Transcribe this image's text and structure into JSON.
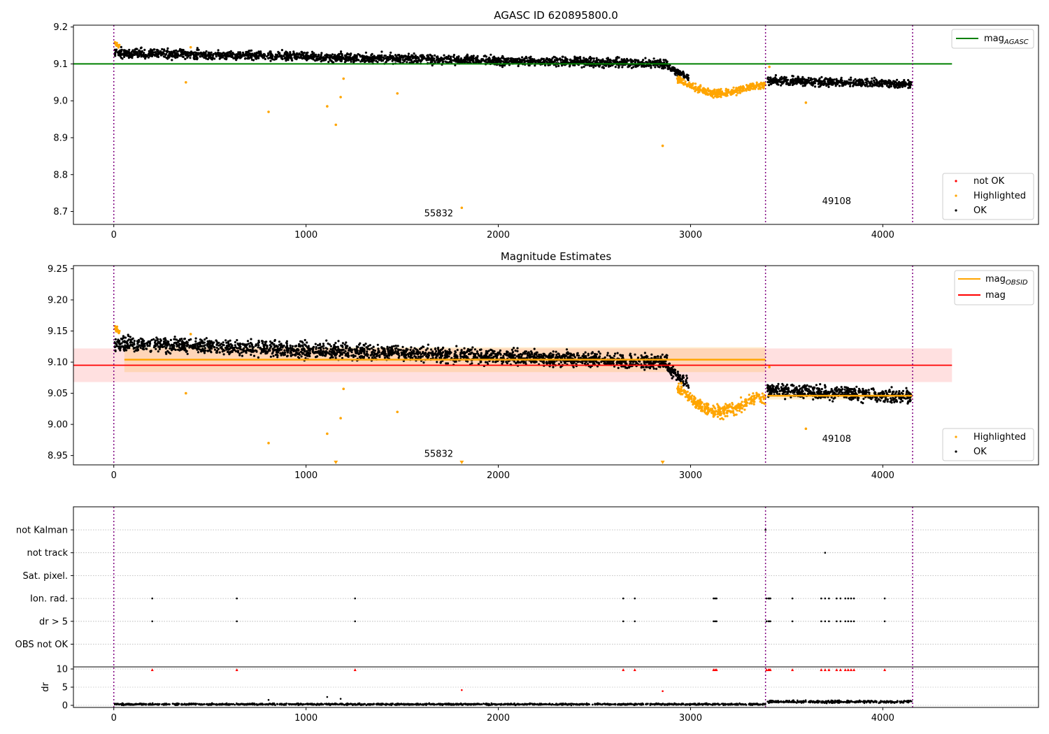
{
  "chart_data": [
    {
      "type": "scatter",
      "title": "AGASC ID 620895800.0",
      "xlim": [
        -210,
        4810
      ],
      "ylim": [
        8.665,
        9.205
      ],
      "xticks": [
        0,
        1000,
        2000,
        3000,
        4000
      ],
      "xtick_labels": [
        "0",
        "1000",
        "2000",
        "3000",
        "4000"
      ],
      "yticks": [
        8.7,
        8.8,
        8.9,
        9.0,
        9.1,
        9.2
      ],
      "ytick_labels": [
        "8.7",
        "8.8",
        "8.9",
        "9.0",
        "9.1",
        "9.2"
      ],
      "obs_boundaries": [
        0,
        3390,
        4155
      ],
      "mag_agasc": {
        "value": 9.1,
        "x_range": [
          -210,
          4360
        ],
        "color": "#008000"
      },
      "annotations": [
        {
          "text": "55832",
          "x": 1690,
          "y": 8.687
        },
        {
          "text": "49108",
          "x": 3760,
          "y": 8.72
        }
      ],
      "legend_lines": [
        {
          "label_main": "mag",
          "label_sub": "AGASC",
          "color": "#008000"
        }
      ],
      "legend_points": [
        {
          "label": "not OK",
          "color": "#ff0000"
        },
        {
          "label": "Highlighted",
          "color": "#ffa500"
        },
        {
          "label": "OK",
          "color": "#000000"
        }
      ],
      "series": [
        {
          "name": "OK",
          "color": "#000000",
          "segments": [
            {
              "x": [
                5,
                2880
              ],
              "start": 9.13,
              "end": 9.1,
              "dip": 0,
              "spread": 0.011
            },
            {
              "x": [
                2880,
                2990
              ],
              "start": 9.09,
              "end": 9.065,
              "dip": 0,
              "spread": 0.008
            },
            {
              "x": [
                3400,
                4150
              ],
              "start": 9.055,
              "end": 9.045,
              "dip": 0,
              "spread": 0.01
            }
          ]
        },
        {
          "name": "Highlighted",
          "color": "#ffa500",
          "segments": [
            {
              "x": [
                5,
                30
              ],
              "start": 9.155,
              "end": 9.148,
              "dip": 0,
              "spread": 0.004
            },
            {
              "x": [
                2930,
                3390
              ],
              "start": 9.06,
              "end": 9.04,
              "dip": 0.03,
              "spread": 0.009
            }
          ],
          "outliers": [
            {
              "x": 375,
              "y": 9.05
            },
            {
              "x": 400,
              "y": 9.145
            },
            {
              "x": 805,
              "y": 8.97
            },
            {
              "x": 1110,
              "y": 8.985
            },
            {
              "x": 1155,
              "y": 8.935
            },
            {
              "x": 1180,
              "y": 9.01
            },
            {
              "x": 1195,
              "y": 9.06
            },
            {
              "x": 1475,
              "y": 9.02
            },
            {
              "x": 1810,
              "y": 8.71
            },
            {
              "x": 2855,
              "y": 8.878
            },
            {
              "x": 3410,
              "y": 9.092
            },
            {
              "x": 3600,
              "y": 8.995
            }
          ]
        }
      ]
    },
    {
      "type": "scatter",
      "title": "Magnitude Estimates",
      "xlim": [
        -210,
        4810
      ],
      "ylim": [
        8.935,
        9.255
      ],
      "xticks": [
        0,
        1000,
        2000,
        3000,
        4000
      ],
      "xtick_labels": [
        "0",
        "1000",
        "2000",
        "3000",
        "4000"
      ],
      "yticks": [
        8.95,
        9.0,
        9.05,
        9.1,
        9.15,
        9.2,
        9.25
      ],
      "ytick_labels": [
        "8.95",
        "9.00",
        "9.05",
        "9.10",
        "9.15",
        "9.20",
        "9.25"
      ],
      "obs_boundaries": [
        0,
        3390,
        4155
      ],
      "mag": {
        "value": 9.095,
        "band": [
          9.068,
          9.122
        ],
        "x_range": [
          -210,
          4360
        ],
        "color": "#ff0000"
      },
      "mag_obsid": [
        {
          "value": 9.104,
          "band": [
            9.084,
            9.124
          ],
          "x_range": [
            55,
            3390
          ]
        },
        {
          "value": 9.046,
          "band": [
            9.04,
            9.052
          ],
          "x_range": [
            3400,
            4155
          ]
        }
      ],
      "mag_obsid_color": "#ffa500",
      "annotations": [
        {
          "text": "55832",
          "x": 1690,
          "y": 8.948
        },
        {
          "text": "49108",
          "x": 3760,
          "y": 8.972
        }
      ],
      "legend_lines": [
        {
          "label_main": "mag",
          "label_sub": "OBSID",
          "color": "#ffa500"
        },
        {
          "label_main": "mag",
          "label_sub": "",
          "color": "#ff0000"
        }
      ],
      "legend_points": [
        {
          "label": "Highlighted",
          "color": "#ffa500"
        },
        {
          "label": "OK",
          "color": "#000000"
        }
      ],
      "clipped_markers": [
        {
          "x": 1155
        },
        {
          "x": 1810
        },
        {
          "x": 2855
        }
      ],
      "series": [
        {
          "name": "OK",
          "color": "#000000",
          "segments": [
            {
              "x": [
                5,
                2880
              ],
              "start": 9.13,
              "end": 9.1,
              "dip": 0,
              "spread": 0.011
            },
            {
              "x": [
                2880,
                2990
              ],
              "start": 9.09,
              "end": 9.065,
              "dip": 0,
              "spread": 0.008
            },
            {
              "x": [
                3400,
                4150
              ],
              "start": 9.055,
              "end": 9.045,
              "dip": 0,
              "spread": 0.01
            }
          ]
        },
        {
          "name": "Highlighted",
          "color": "#ffa500",
          "segments": [
            {
              "x": [
                5,
                30
              ],
              "start": 9.155,
              "end": 9.148,
              "dip": 0,
              "spread": 0.004
            },
            {
              "x": [
                2930,
                3390
              ],
              "start": 9.06,
              "end": 9.04,
              "dip": 0.03,
              "spread": 0.009
            }
          ],
          "outliers": [
            {
              "x": 375,
              "y": 9.05
            },
            {
              "x": 400,
              "y": 9.145
            },
            {
              "x": 805,
              "y": 8.97
            },
            {
              "x": 1110,
              "y": 8.985
            },
            {
              "x": 1180,
              "y": 9.01
            },
            {
              "x": 1195,
              "y": 9.057
            },
            {
              "x": 1475,
              "y": 9.02
            },
            {
              "x": 3410,
              "y": 9.092
            },
            {
              "x": 3600,
              "y": 8.993
            }
          ]
        }
      ]
    },
    {
      "type": "scatter",
      "title": "",
      "xlim": [
        -210,
        4810
      ],
      "categories": [
        "OBS not OK",
        "dr > 5",
        "Ion. rad.",
        "Sat. pixel.",
        "not track",
        "not Kalman"
      ],
      "obs_boundaries": [
        0,
        3390,
        4155
      ],
      "flags": {
        "not Kalman": [
          3390
        ],
        "not track": [
          3700
        ],
        "Sat. pixel.": [],
        "Ion. rad.": [
          200,
          640,
          1255,
          2650,
          2710,
          3120,
          3128,
          3135,
          3395,
          3405,
          3410,
          3415,
          3530,
          3680,
          3700,
          3720,
          3760,
          3780,
          3805,
          3820,
          3835,
          3850,
          4010
        ],
        "dr > 5": [
          200,
          640,
          1255,
          2650,
          2710,
          3120,
          3128,
          3135,
          3395,
          3405,
          3410,
          3415,
          3530,
          3680,
          3700,
          3720,
          3760,
          3780,
          3805,
          3820,
          3835,
          3850,
          4010
        ],
        "OBS not OK": []
      }
    },
    {
      "type": "scatter",
      "title": "",
      "ylabel": "dr",
      "xlim": [
        -210,
        4810
      ],
      "ylim": [
        -0.5,
        10.5
      ],
      "xticks": [
        0,
        1000,
        2000,
        3000,
        4000
      ],
      "xtick_labels": [
        "0",
        "1000",
        "2000",
        "3000",
        "4000"
      ],
      "yticks": [
        0,
        5,
        10
      ],
      "ytick_labels": [
        "0",
        "5",
        "10"
      ],
      "obs_boundaries": [
        0,
        3390,
        4155
      ],
      "flagged_dr": {
        "y": 10,
        "x": [
          200,
          640,
          1255,
          2650,
          2710,
          3120,
          3128,
          3135,
          3395,
          3405,
          3410,
          3415,
          3530,
          3680,
          3700,
          3720,
          3760,
          3780,
          3805,
          3820,
          3835,
          3850,
          4010
        ]
      },
      "dr_outliers": [
        {
          "x": 805,
          "y": 1.5
        },
        {
          "x": 1110,
          "y": 2.3
        },
        {
          "x": 1180,
          "y": 1.8
        },
        {
          "x": 1810,
          "y": 4.2
        },
        {
          "x": 2855,
          "y": 3.9
        }
      ],
      "dr_segments": [
        {
          "x": [
            5,
            3390
          ],
          "start": 0.3,
          "end": 0.3,
          "spread": 0.2
        },
        {
          "x": [
            3400,
            4150
          ],
          "start": 1.0,
          "end": 1.0,
          "spread": 0.3
        }
      ]
    }
  ]
}
